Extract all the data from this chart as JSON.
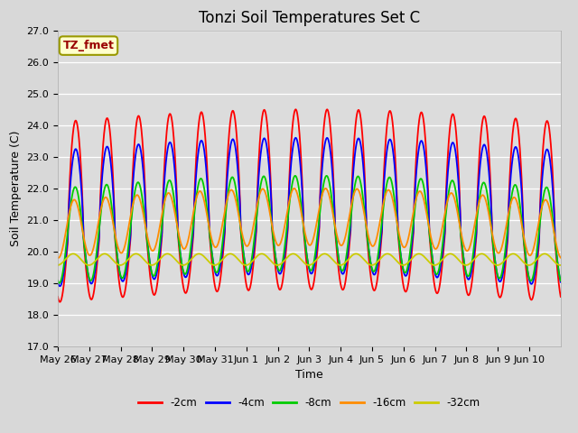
{
  "title": "Tonzi Soil Temperatures Set C",
  "xlabel": "Time",
  "ylabel": "Soil Temperature (C)",
  "ylim": [
    17.0,
    27.0
  ],
  "yticks": [
    17.0,
    18.0,
    19.0,
    20.0,
    21.0,
    22.0,
    23.0,
    24.0,
    25.0,
    26.0,
    27.0
  ],
  "xtick_labels": [
    "May 26",
    "May 27",
    "May 28",
    "May 29",
    "May 30",
    "May 31",
    "Jun 1",
    "Jun 2",
    "Jun 3",
    "Jun 4",
    "Jun 5",
    "Jun 6",
    "Jun 7",
    "Jun 8",
    "Jun 9",
    "Jun 10"
  ],
  "annotation_text": "TZ_fmet",
  "fig_bg_color": "#d8d8d8",
  "plot_bg_color": "#dcdcdc",
  "line_colors": [
    "#ff0000",
    "#0000ff",
    "#00cc00",
    "#ff8c00",
    "#cccc00"
  ],
  "line_labels": [
    "-2cm",
    "-4cm",
    "-8cm",
    "-16cm",
    "-32cm"
  ],
  "line_widths": [
    1.3,
    1.3,
    1.3,
    1.3,
    1.3
  ],
  "title_fontsize": 12,
  "axis_fontsize": 9,
  "tick_fontsize": 8
}
